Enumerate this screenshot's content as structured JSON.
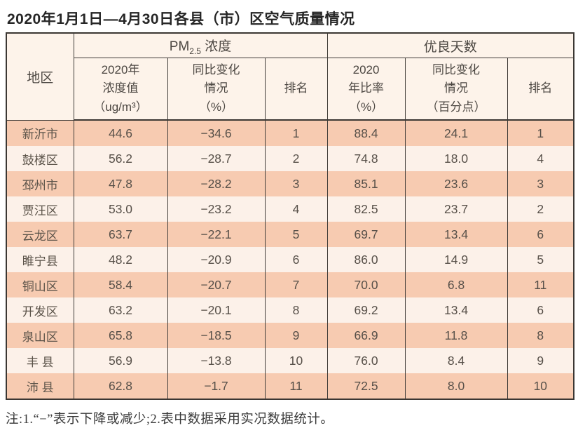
{
  "page": {
    "title": "2020年1月1日—4月30日各县（市）区空气质量情况",
    "footnote": "注:1.“−”表示下降或减少;2.表中数据采用实况数据统计。"
  },
  "colors": {
    "row_dark": "#f7cbb1",
    "row_light": "#fcf1e9",
    "header_bg": "#fdf3ea",
    "border": "#3b3733",
    "text": "#575049"
  },
  "chart_data": {
    "type": "table",
    "title": "2020年1月1日—4月30日各县（市）区空气质量情况",
    "region_header": "地区",
    "group1": {
      "prefix": "PM",
      "sub": "2.5",
      "suffix": " 浓度"
    },
    "group2": "优良天数",
    "columns": [
      "2020年\n浓度值\n（ug/m³）",
      "同比变化\n情况\n（%）",
      "排名",
      "2020\n年比率\n（%）",
      "同比变化\n情况\n（百分点）",
      "排名"
    ],
    "rows": [
      {
        "region": "新沂市",
        "pm_value": "44.6",
        "pm_change": "−34.6",
        "pm_rank": "1",
        "good_rate": "88.4",
        "good_change": "24.1",
        "good_rank": "1"
      },
      {
        "region": "鼓楼区",
        "pm_value": "56.2",
        "pm_change": "−28.7",
        "pm_rank": "2",
        "good_rate": "74.8",
        "good_change": "18.0",
        "good_rank": "4"
      },
      {
        "region": "邳州市",
        "pm_value": "47.8",
        "pm_change": "−28.2",
        "pm_rank": "3",
        "good_rate": "85.1",
        "good_change": "23.6",
        "good_rank": "3"
      },
      {
        "region": "贾汪区",
        "pm_value": "53.0",
        "pm_change": "−23.2",
        "pm_rank": "4",
        "good_rate": "82.5",
        "good_change": "23.7",
        "good_rank": "2"
      },
      {
        "region": "云龙区",
        "pm_value": "63.7",
        "pm_change": "−22.1",
        "pm_rank": "5",
        "good_rate": "69.7",
        "good_change": "13.4",
        "good_rank": "6"
      },
      {
        "region": "睢宁县",
        "pm_value": "48.2",
        "pm_change": "−20.9",
        "pm_rank": "6",
        "good_rate": "86.0",
        "good_change": "14.9",
        "good_rank": "5"
      },
      {
        "region": "铜山区",
        "pm_value": "58.4",
        "pm_change": "−20.7",
        "pm_rank": "7",
        "good_rate": "70.0",
        "good_change": "6.8",
        "good_rank": "11"
      },
      {
        "region": "开发区",
        "pm_value": "63.2",
        "pm_change": "−20.1",
        "pm_rank": "8",
        "good_rate": "69.2",
        "good_change": "13.4",
        "good_rank": "6"
      },
      {
        "region": "泉山区",
        "pm_value": "65.8",
        "pm_change": "−18.5",
        "pm_rank": "9",
        "good_rate": "66.9",
        "good_change": "11.8",
        "good_rank": "8"
      },
      {
        "region": "丰 县",
        "pm_value": "56.9",
        "pm_change": "−13.8",
        "pm_rank": "10",
        "good_rate": "76.0",
        "good_change": "8.4",
        "good_rank": "9"
      },
      {
        "region": "沛 县",
        "pm_value": "62.8",
        "pm_change": "−1.7",
        "pm_rank": "11",
        "good_rate": "72.5",
        "good_change": "8.0",
        "good_rank": "10"
      }
    ]
  }
}
